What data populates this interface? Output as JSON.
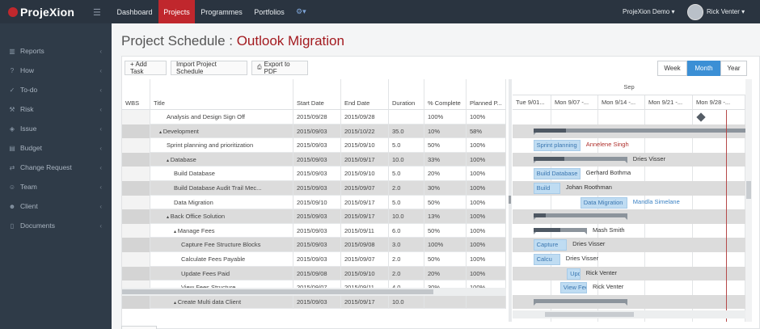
{
  "brand": {
    "name": "ProjeXion",
    "logo_icon": "power-icon",
    "menu_icon": "hamburger-icon"
  },
  "topnav": {
    "items": [
      {
        "label": "Dashboard",
        "active": false
      },
      {
        "label": "Projects",
        "active": true
      },
      {
        "label": "Programmes",
        "active": false
      },
      {
        "label": "Portfolios",
        "active": false
      }
    ],
    "settings_icon": "gear-icon",
    "account": "ProjeXion Demo",
    "user": "Rick Venter"
  },
  "sidebar": {
    "items": [
      {
        "label": "Reports",
        "icon": "bar-chart-icon"
      },
      {
        "label": "How",
        "icon": "question-circle-icon"
      },
      {
        "label": "To-do",
        "icon": "check-circle-icon"
      },
      {
        "label": "Risk",
        "icon": "wrench-icon"
      },
      {
        "label": "Issue",
        "icon": "tag-icon"
      },
      {
        "label": "Budget",
        "icon": "wallet-icon"
      },
      {
        "label": "Change Request",
        "icon": "shuffle-icon"
      },
      {
        "label": "Team",
        "icon": "people-icon"
      },
      {
        "label": "Client",
        "icon": "user-icon"
      },
      {
        "label": "Documents",
        "icon": "document-icon"
      }
    ]
  },
  "page": {
    "title_prefix": "Project Schedule : ",
    "project_name": "Outlook Migration"
  },
  "toolbar": {
    "add_task": "+ Add Task",
    "import": "Import Project Schedule",
    "export": "Export to PDF",
    "export_icon": "pdf-icon",
    "views": [
      {
        "label": "Week",
        "active": false
      },
      {
        "label": "Month",
        "active": true
      },
      {
        "label": "Year",
        "active": false
      }
    ]
  },
  "grid": {
    "columns": [
      "WBS",
      "Title",
      "Start Date",
      "End Date",
      "Duration",
      "% Complete",
      "Planned P..."
    ],
    "rows": [
      {
        "wbs": "",
        "title": "Analysis and Design Sign Off",
        "indent": 2,
        "toggle": "",
        "start": "2015/09/28",
        "end": "2015/09/28",
        "duration": "",
        "complete": "100%",
        "planned": "100%",
        "shade": false
      },
      {
        "wbs": "",
        "title": "Development",
        "indent": 1,
        "toggle": "▴",
        "start": "2015/09/03",
        "end": "2015/10/22",
        "duration": "35.0",
        "complete": "10%",
        "planned": "58%",
        "shade": true
      },
      {
        "wbs": "",
        "title": "Sprint planning and prioritization",
        "indent": 2,
        "toggle": "",
        "start": "2015/09/03",
        "end": "2015/09/10",
        "duration": "5.0",
        "complete": "50%",
        "planned": "100%",
        "shade": false
      },
      {
        "wbs": "",
        "title": "Database",
        "indent": 2,
        "toggle": "▴",
        "start": "2015/09/03",
        "end": "2015/09/17",
        "duration": "10.0",
        "complete": "33%",
        "planned": "100%",
        "shade": true
      },
      {
        "wbs": "",
        "title": "Build Database",
        "indent": 3,
        "toggle": "",
        "start": "2015/09/03",
        "end": "2015/09/10",
        "duration": "5.0",
        "complete": "20%",
        "planned": "100%",
        "shade": false
      },
      {
        "wbs": "",
        "title": "Build Database Audit Trail Mec...",
        "indent": 3,
        "toggle": "",
        "start": "2015/09/03",
        "end": "2015/09/07",
        "duration": "2.0",
        "complete": "30%",
        "planned": "100%",
        "shade": true
      },
      {
        "wbs": "",
        "title": "Data Migration",
        "indent": 3,
        "toggle": "",
        "start": "2015/09/10",
        "end": "2015/09/17",
        "duration": "5.0",
        "complete": "50%",
        "planned": "100%",
        "shade": false
      },
      {
        "wbs": "",
        "title": "Back Office Solution",
        "indent": 2,
        "toggle": "▴",
        "start": "2015/09/03",
        "end": "2015/09/17",
        "duration": "10.0",
        "complete": "13%",
        "planned": "100%",
        "shade": true
      },
      {
        "wbs": "",
        "title": "Manage Fees",
        "indent": 3,
        "toggle": "▴",
        "start": "2015/09/03",
        "end": "2015/09/11",
        "duration": "6.0",
        "complete": "50%",
        "planned": "100%",
        "shade": false
      },
      {
        "wbs": "",
        "title": "Capture Fee Structure Blocks",
        "indent": 4,
        "toggle": "",
        "start": "2015/09/03",
        "end": "2015/09/08",
        "duration": "3.0",
        "complete": "100%",
        "planned": "100%",
        "shade": true
      },
      {
        "wbs": "",
        "title": "Calculate Fees Payable",
        "indent": 4,
        "toggle": "",
        "start": "2015/09/03",
        "end": "2015/09/07",
        "duration": "2.0",
        "complete": "50%",
        "planned": "100%",
        "shade": false
      },
      {
        "wbs": "",
        "title": "Update Fees Paid",
        "indent": 4,
        "toggle": "",
        "start": "2015/09/08",
        "end": "2015/09/10",
        "duration": "2.0",
        "complete": "20%",
        "planned": "100%",
        "shade": true
      },
      {
        "wbs": "",
        "title": "View Fees Structure",
        "indent": 4,
        "toggle": "",
        "start": "2015/09/07",
        "end": "2015/09/11",
        "duration": "4.0",
        "complete": "30%",
        "planned": "100%",
        "shade": false
      },
      {
        "wbs": "",
        "title": "Create Multi data Client",
        "indent": 3,
        "toggle": "▴",
        "start": "2015/09/03",
        "end": "2015/09/17",
        "duration": "10.0",
        "complete": "",
        "planned": "",
        "shade": true
      }
    ]
  },
  "gantt": {
    "month": "Sep",
    "weeks": [
      "Tue 9/01...",
      "Mon 9/07 -...",
      "Mon 9/14 -...",
      "Mon 9/21 -...",
      "Mon 9/28 -..."
    ],
    "rows": [
      {
        "kind": "milestone",
        "start": 27,
        "end": 27,
        "bar_text": "",
        "person": "",
        "person_link": false
      },
      {
        "kind": "summary",
        "start": 2,
        "end": 51,
        "progress": 0.1,
        "bar_text": "",
        "person": "",
        "person_link": false
      },
      {
        "kind": "task",
        "start": 2,
        "end": 9,
        "bar_text": "Sprint planning",
        "person": "Annelene Singh",
        "person_link": true
      },
      {
        "kind": "summary",
        "start": 2,
        "end": 16,
        "progress": 0.33,
        "bar_text": "",
        "person": "Dries Visser",
        "person_link": false
      },
      {
        "kind": "task",
        "start": 2,
        "end": 9,
        "bar_text": "Build Database",
        "person": "Gerhard Bothma",
        "person_link": false
      },
      {
        "kind": "task",
        "start": 2,
        "end": 6,
        "bar_text": "Build",
        "person": "Johan Roothman",
        "person_link": false
      },
      {
        "kind": "task",
        "start": 9,
        "end": 16,
        "bar_text": "Data Migration",
        "person": "Mandla Simelane",
        "person_link": true
      },
      {
        "kind": "summary",
        "start": 2,
        "end": 16,
        "progress": 0.13,
        "bar_text": "",
        "person": "",
        "person_link": false
      },
      {
        "kind": "summary",
        "start": 2,
        "end": 10,
        "progress": 0.5,
        "bar_text": "",
        "person": "Mash Smith",
        "person_link": false
      },
      {
        "kind": "task",
        "start": 2,
        "end": 7,
        "bar_text": "Capture",
        "person": "Dries Visser",
        "person_link": false
      },
      {
        "kind": "task",
        "start": 2,
        "end": 6,
        "bar_text": "Calcu",
        "person": "Dries Visser",
        "person_link": false
      },
      {
        "kind": "task",
        "start": 7,
        "end": 9,
        "bar_text": "Upda",
        "person": "Rick Venter",
        "person_link": false
      },
      {
        "kind": "task",
        "start": 6,
        "end": 10,
        "bar_text": "View Fees S",
        "person": "Rick Venter",
        "person_link": false
      },
      {
        "kind": "summary",
        "start": 2,
        "end": 16,
        "progress": 0.0,
        "bar_text": "",
        "person": "",
        "person_link": false
      }
    ]
  },
  "colors": {
    "brand_red": "#c0272d",
    "project_title": "#a31a1f",
    "accent_blue": "#3b8fd5",
    "sidebar_bg": "#2f3b48",
    "topbar_bg": "#2a3440",
    "link_red": "#b0302c",
    "link_blue": "#3b82c4"
  }
}
